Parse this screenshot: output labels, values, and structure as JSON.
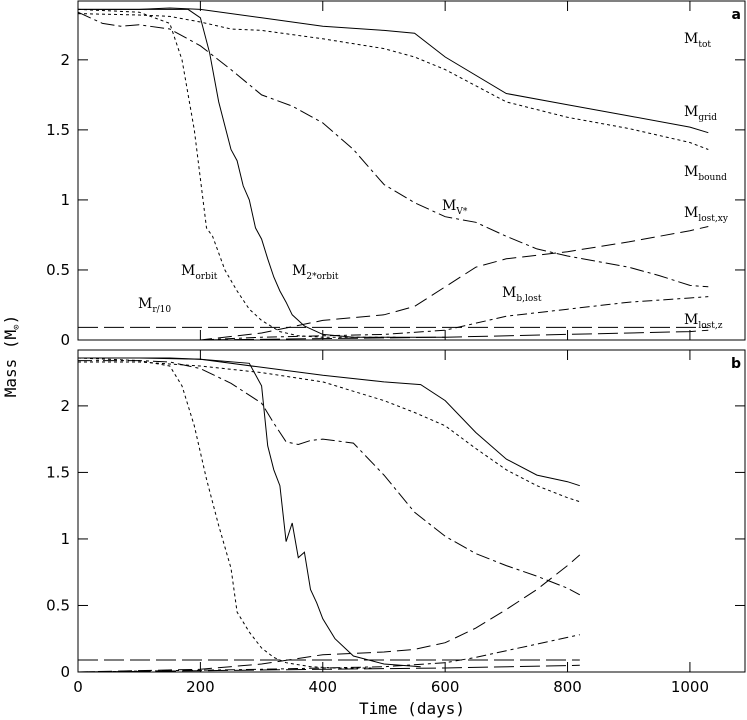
{
  "chart_data": {
    "type": "line",
    "xlabel": "Time (days)",
    "ylabel": "Mass (M",
    "ylabel_symbol": "⊙",
    "ylabel_close": ")",
    "xlim": [
      0,
      1090
    ],
    "xticks": [
      0,
      200,
      400,
      600,
      800,
      1000
    ],
    "panels": [
      {
        "letter": "a",
        "ylim": [
          0,
          2.42
        ],
        "yticks": [
          0,
          0.5,
          1,
          1.5,
          2
        ],
        "ytick_labels": [
          "0",
          "0.5",
          "1",
          "1.5",
          "2"
        ],
        "series": [
          {
            "name": "M_tot",
            "label_main": "M",
            "label_sub": "tot",
            "dash": "none",
            "x": [
              0,
              50,
              100,
              150,
              200,
              300,
              400,
              500,
              550,
              600,
              700,
              800,
              900,
              1000,
              1030
            ],
            "y": [
              2.36,
              2.36,
              2.36,
              2.37,
              2.36,
              2.3,
              2.24,
              2.21,
              2.19,
              2.02,
              1.76,
              1.68,
              1.6,
              1.52,
              1.48
            ]
          },
          {
            "name": "M_grid",
            "label_main": "M",
            "label_sub": "grid",
            "dash": "3 3",
            "x": [
              0,
              100,
              150,
              200,
              250,
              300,
              400,
              500,
              550,
              600,
              700,
              800,
              900,
              1000,
              1030
            ],
            "y": [
              2.33,
              2.32,
              2.31,
              2.27,
              2.22,
              2.21,
              2.15,
              2.08,
              2.02,
              1.93,
              1.7,
              1.59,
              1.51,
              1.41,
              1.36
            ]
          },
          {
            "name": "M_bound",
            "label_main": "M",
            "label_sub": "bound",
            "dash": "none",
            "x": [
              0,
              5
            ],
            "y": [
              2.33,
              2.33
            ]
          },
          {
            "name": "M_V*",
            "label_main": "M",
            "label_sub": "V*",
            "dash": "14 4 3 4",
            "x": [
              0,
              40,
              70,
              100,
              150,
              200,
              250,
              300,
              350,
              400,
              450,
              500,
              550,
              600,
              650,
              700,
              750,
              800,
              850,
              900,
              950,
              1000,
              1030
            ],
            "y": [
              2.34,
              2.26,
              2.24,
              2.25,
              2.22,
              2.1,
              1.93,
              1.75,
              1.67,
              1.55,
              1.36,
              1.11,
              0.98,
              0.88,
              0.84,
              0.74,
              0.65,
              0.6,
              0.56,
              0.52,
              0.46,
              0.39,
              0.38
            ]
          },
          {
            "name": "M_orbit",
            "label_main": "M",
            "label_sub": "orbit",
            "dash": "3 3",
            "x": [
              0,
              100,
              150,
              170,
              190,
              210,
              220,
              240,
              260,
              280,
              300,
              330,
              360,
              400,
              450,
              520
            ],
            "y": [
              2.36,
              2.34,
              2.26,
              2.0,
              1.5,
              0.8,
              0.74,
              0.5,
              0.35,
              0.22,
              0.14,
              0.06,
              0.03,
              0.02,
              0.02,
              0.02
            ]
          },
          {
            "name": "M_2*orbit",
            "label_main": "M",
            "label_sub": "2*orbit",
            "dash": "none",
            "x": [
              0,
              100,
              180,
              200,
              215,
              230,
              250,
              260,
              270,
              280,
              290,
              300,
              310,
              320,
              330,
              340,
              350,
              370,
              400,
              450,
              500,
              550,
              600
            ],
            "y": [
              2.36,
              2.36,
              2.36,
              2.3,
              2.05,
              1.7,
              1.36,
              1.28,
              1.1,
              1.0,
              0.8,
              0.72,
              0.58,
              0.45,
              0.35,
              0.27,
              0.18,
              0.1,
              0.04,
              0.02,
              0.02,
              0.02,
              0.02
            ]
          },
          {
            "name": "M_lost,xy",
            "label_main": "M",
            "label_sub": "lost,xy",
            "dash": "14 6",
            "x": [
              0,
              200,
              300,
              400,
              500,
              550,
              600,
              650,
              700,
              800,
              900,
              1000,
              1030
            ],
            "y": [
              0.0,
              0.0,
              0.05,
              0.14,
              0.18,
              0.24,
              0.38,
              0.52,
              0.58,
              0.63,
              0.7,
              0.78,
              0.81
            ]
          },
          {
            "name": "M_b,lost",
            "label_main": "M",
            "label_sub": "b,lost",
            "dash": "10 4 3 4",
            "x": [
              0,
              200,
              300,
              500,
              600,
              650,
              700,
              800,
              900,
              1000,
              1030
            ],
            "y": [
              0.0,
              0.0,
              0.02,
              0.04,
              0.07,
              0.12,
              0.17,
              0.22,
              0.27,
              0.3,
              0.31
            ]
          },
          {
            "name": "M_r/10",
            "label_main": "M",
            "label_sub": "r/10",
            "dash": "20 6",
            "x": [
              0,
              200,
              300,
              400,
              500,
              600,
              700,
              800,
              900,
              1000,
              1030
            ],
            "y": [
              0.09,
              0.09,
              0.09,
              0.09,
              0.09,
              0.09,
              0.09,
              0.09,
              0.09,
              0.09,
              0.09
            ]
          },
          {
            "name": "M_lost,z",
            "label_main": "M",
            "label_sub": "lost,z",
            "dash": "20 6",
            "x": [
              0,
              200,
              400,
              600,
              800,
              1000,
              1030
            ],
            "y": [
              0.0,
              0.0,
              0.01,
              0.02,
              0.04,
              0.06,
              0.07
            ]
          }
        ]
      },
      {
        "letter": "b",
        "ylim": [
          0,
          2.42
        ],
        "yticks": [
          0,
          0.5,
          1,
          1.5,
          2
        ],
        "ytick_labels": [
          "0",
          "0.5",
          "1",
          "1.5",
          "2"
        ],
        "series": [
          {
            "name": "M_tot",
            "dash": "none",
            "x": [
              0,
              100,
              200,
              300,
              400,
              500,
              560,
              600,
              650,
              700,
              750,
              800,
              820
            ],
            "y": [
              2.36,
              2.36,
              2.35,
              2.29,
              2.23,
              2.18,
              2.16,
              2.04,
              1.8,
              1.6,
              1.48,
              1.43,
              1.4
            ]
          },
          {
            "name": "M_grid",
            "dash": "3 3",
            "x": [
              0,
              100,
              200,
              300,
              400,
              500,
              550,
              600,
              650,
              700,
              750,
              800,
              820
            ],
            "y": [
              2.33,
              2.33,
              2.3,
              2.25,
              2.18,
              2.04,
              1.95,
              1.85,
              1.68,
              1.52,
              1.4,
              1.31,
              1.28
            ]
          },
          {
            "name": "M_V*",
            "dash": "14 4 3 4",
            "x": [
              0,
              100,
              150,
              200,
              250,
              300,
              320,
              340,
              360,
              380,
              400,
              450,
              500,
              550,
              600,
              650,
              700,
              750,
              800,
              820
            ],
            "y": [
              2.34,
              2.34,
              2.33,
              2.28,
              2.17,
              2.02,
              1.87,
              1.73,
              1.71,
              1.74,
              1.75,
              1.72,
              1.48,
              1.2,
              1.02,
              0.89,
              0.8,
              0.72,
              0.63,
              0.58
            ]
          },
          {
            "name": "M_orbit",
            "dash": "3 3",
            "x": [
              0,
              100,
              150,
              170,
              190,
              210,
              230,
              250,
              260,
              280,
              300,
              320,
              340,
              380,
              420,
              480
            ],
            "y": [
              2.36,
              2.34,
              2.3,
              2.15,
              1.85,
              1.45,
              1.1,
              0.78,
              0.45,
              0.3,
              0.18,
              0.11,
              0.07,
              0.04,
              0.03,
              0.03
            ]
          },
          {
            "name": "M_2*orbit",
            "dash": "none",
            "x": [
              0,
              150,
              200,
              280,
              300,
              310,
              320,
              330,
              340,
              350,
              360,
              370,
              380,
              390,
              400,
              420,
              450,
              500,
              560
            ],
            "y": [
              2.36,
              2.36,
              2.35,
              2.32,
              2.15,
              1.7,
              1.52,
              1.4,
              0.98,
              1.12,
              0.86,
              0.9,
              0.62,
              0.52,
              0.4,
              0.25,
              0.12,
              0.06,
              0.04
            ]
          },
          {
            "name": "M_lost,xy",
            "dash": "14 6",
            "x": [
              0,
              200,
              300,
              400,
              500,
              550,
              600,
              650,
              700,
              750,
              800,
              820
            ],
            "y": [
              0.0,
              0.02,
              0.06,
              0.13,
              0.15,
              0.17,
              0.22,
              0.33,
              0.47,
              0.62,
              0.8,
              0.88
            ]
          },
          {
            "name": "M_b,lost",
            "dash": "10 4 3 4",
            "x": [
              0,
              300,
              500,
              600,
              650,
              700,
              750,
              800,
              820
            ],
            "y": [
              0.0,
              0.02,
              0.04,
              0.07,
              0.11,
              0.16,
              0.21,
              0.26,
              0.28
            ]
          },
          {
            "name": "M_r/10",
            "dash": "20 6",
            "x": [
              0,
              200,
              400,
              600,
              820
            ],
            "y": [
              0.09,
              0.09,
              0.09,
              0.09,
              0.09
            ]
          },
          {
            "name": "M_lost,z",
            "dash": "20 6",
            "x": [
              0,
              200,
              400,
              600,
              820
            ],
            "y": [
              0.0,
              0.01,
              0.02,
              0.03,
              0.05
            ]
          }
        ]
      }
    ]
  }
}
